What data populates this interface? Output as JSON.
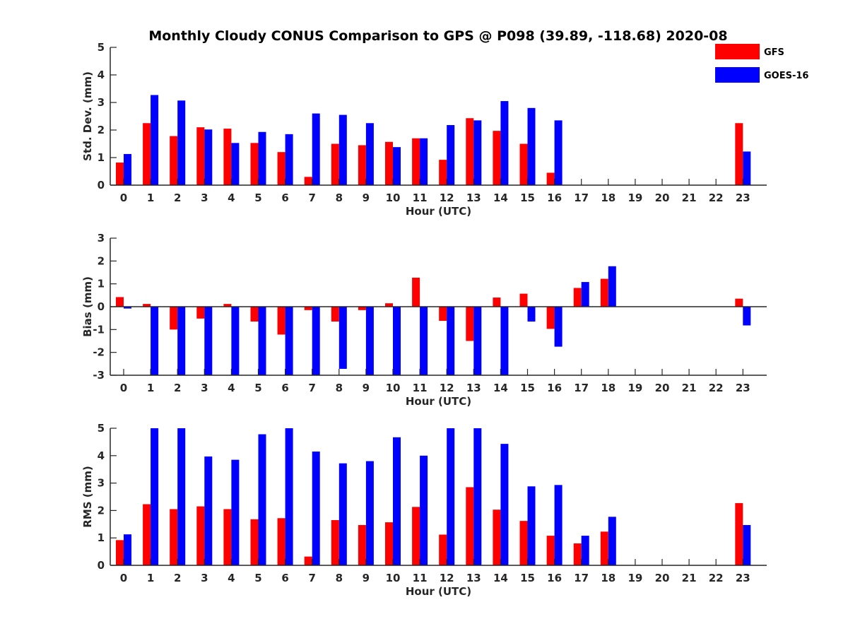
{
  "figure": {
    "title": "Monthly Cloudy CONUS Comparison to GPS @ P098 (39.89, -118.68) 2020-08",
    "legend": {
      "placement": "top-right",
      "items": [
        {
          "name": "GFS",
          "color": "#ff0000"
        },
        {
          "name": "GOES-16",
          "color": "#0000ff"
        }
      ]
    }
  },
  "chart_data": [
    {
      "type": "bar",
      "categories": [
        "0",
        "1",
        "2",
        "3",
        "4",
        "5",
        "6",
        "7",
        "8",
        "9",
        "10",
        "11",
        "12",
        "13",
        "14",
        "15",
        "16",
        "17",
        "18",
        "19",
        "20",
        "21",
        "22",
        "23"
      ],
      "xlabel": "Hour (UTC)",
      "ylabel": "Std. Dev. (mm)",
      "ylim": [
        0,
        5
      ],
      "yticks": [
        "0",
        "1",
        "2",
        "3",
        "4",
        "5"
      ],
      "grid": false,
      "series": [
        {
          "name": "GFS",
          "color": "#ff0000",
          "values": [
            0.82,
            2.25,
            1.78,
            2.1,
            2.05,
            1.53,
            1.2,
            0.3,
            1.5,
            1.45,
            1.57,
            1.7,
            0.92,
            2.43,
            1.97,
            1.5,
            0.45,
            null,
            null,
            null,
            null,
            null,
            null,
            2.25
          ]
        },
        {
          "name": "GOES-16",
          "color": "#0000ff",
          "values": [
            1.13,
            3.27,
            3.07,
            2.02,
            1.53,
            1.93,
            1.85,
            2.6,
            2.55,
            2.25,
            1.38,
            1.7,
            2.18,
            2.35,
            3.05,
            2.8,
            2.35,
            null,
            null,
            null,
            null,
            null,
            null,
            1.22
          ]
        }
      ]
    },
    {
      "type": "bar",
      "categories": [
        "0",
        "1",
        "2",
        "3",
        "4",
        "5",
        "6",
        "7",
        "8",
        "9",
        "10",
        "11",
        "12",
        "13",
        "14",
        "15",
        "16",
        "17",
        "18",
        "19",
        "20",
        "21",
        "22",
        "23"
      ],
      "xlabel": "Hour (UTC)",
      "ylabel": "Bias (mm)",
      "ylim": [
        -3,
        3
      ],
      "yticks": [
        "-3",
        "-2",
        "-1",
        "0",
        "1",
        "2",
        "3"
      ],
      "grid": false,
      "series": [
        {
          "name": "GFS",
          "color": "#ff0000",
          "values": [
            0.42,
            0.12,
            -1.0,
            -0.52,
            0.12,
            -0.65,
            -1.22,
            -0.15,
            -0.65,
            -0.15,
            0.15,
            1.27,
            -0.62,
            -1.5,
            0.4,
            0.57,
            -0.97,
            0.82,
            1.22,
            null,
            null,
            null,
            null,
            0.35
          ]
        },
        {
          "name": "GOES-16",
          "color": "#0000ff",
          "values": [
            -0.08,
            -3.0,
            -3.0,
            -3.0,
            -3.0,
            -3.0,
            -3.0,
            -3.0,
            -2.72,
            -3.0,
            -3.0,
            -3.0,
            -3.0,
            -3.0,
            -3.0,
            -0.65,
            -1.75,
            1.08,
            1.77,
            null,
            null,
            null,
            null,
            -0.82
          ]
        }
      ]
    },
    {
      "type": "bar",
      "categories": [
        "0",
        "1",
        "2",
        "3",
        "4",
        "5",
        "6",
        "7",
        "8",
        "9",
        "10",
        "11",
        "12",
        "13",
        "14",
        "15",
        "16",
        "17",
        "18",
        "19",
        "20",
        "21",
        "22",
        "23"
      ],
      "xlabel": "Hour (UTC)",
      "ylabel": "RMS (mm)",
      "ylim": [
        0,
        5
      ],
      "yticks": [
        "0",
        "1",
        "2",
        "3",
        "4",
        "5"
      ],
      "grid": false,
      "series": [
        {
          "name": "GFS",
          "color": "#ff0000",
          "values": [
            0.92,
            2.23,
            2.05,
            2.15,
            2.05,
            1.68,
            1.72,
            0.32,
            1.65,
            1.47,
            1.57,
            2.13,
            1.12,
            2.85,
            2.03,
            1.62,
            1.08,
            0.8,
            1.23,
            null,
            null,
            null,
            null,
            2.27
          ]
        },
        {
          "name": "GOES-16",
          "color": "#0000ff",
          "values": [
            1.13,
            5.0,
            5.0,
            3.97,
            3.85,
            4.78,
            5.0,
            4.15,
            3.72,
            3.8,
            4.67,
            4.0,
            5.0,
            5.0,
            4.43,
            2.88,
            2.93,
            1.08,
            1.77,
            null,
            null,
            null,
            null,
            1.47
          ]
        }
      ]
    }
  ]
}
